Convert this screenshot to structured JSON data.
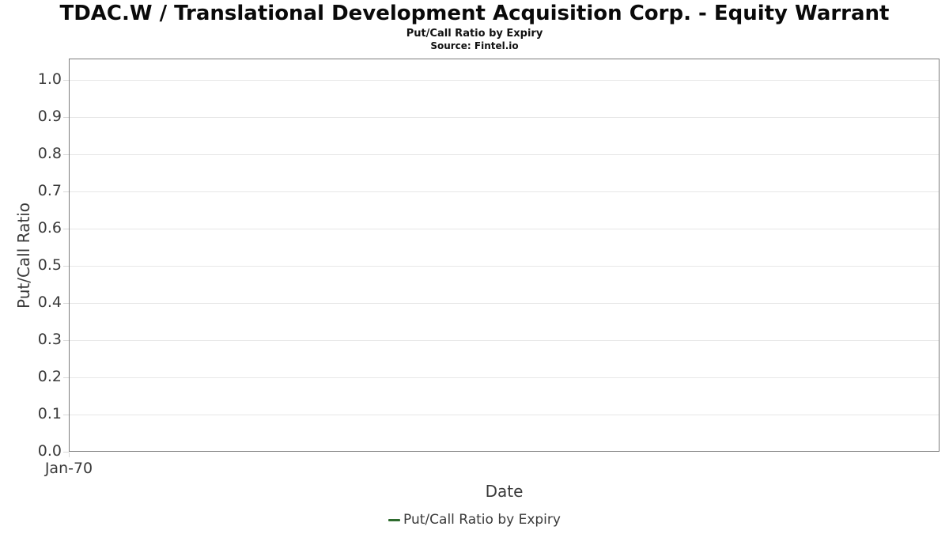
{
  "title": "TDAC.W / Translational Development Acquisition Corp. - Equity Warrant",
  "subtitle": "Put/Call Ratio by Expiry",
  "source": "Source: Fintel.io",
  "axes": {
    "ylabel": "Put/Call Ratio",
    "xlabel": "Date",
    "yticks": [
      "0.0",
      "0.1",
      "0.2",
      "0.3",
      "0.4",
      "0.5",
      "0.6",
      "0.7",
      "0.8",
      "0.9",
      "1.0"
    ],
    "xticks": [
      "Jan-70"
    ]
  },
  "legend": {
    "label": "Put/Call Ratio by Expiry",
    "color": "#2e6b2e"
  },
  "colors": {
    "grid": "#e7e7e7",
    "plot_border": "#7d7d7d",
    "tick_text": "#3a3a3a",
    "title_text": "#0a0a0a"
  },
  "chart_data": {
    "type": "line",
    "title": "TDAC.W / Translational Development Acquisition Corp. - Equity Warrant",
    "subtitle": "Put/Call Ratio by Expiry",
    "source": "Source: Fintel.io",
    "xlabel": "Date",
    "ylabel": "Put/Call Ratio",
    "ylim": [
      0.0,
      1.06
    ],
    "ytick_values": [
      0.0,
      0.1,
      0.2,
      0.3,
      0.4,
      0.5,
      0.6,
      0.7,
      0.8,
      0.9,
      1.0
    ],
    "x_tick_labels": [
      "Jan-70"
    ],
    "grid": "horizontal",
    "legend_position": "bottom-center",
    "series": [
      {
        "name": "Put/Call Ratio by Expiry",
        "color": "#2e6b2e",
        "x": [],
        "values": []
      }
    ]
  }
}
